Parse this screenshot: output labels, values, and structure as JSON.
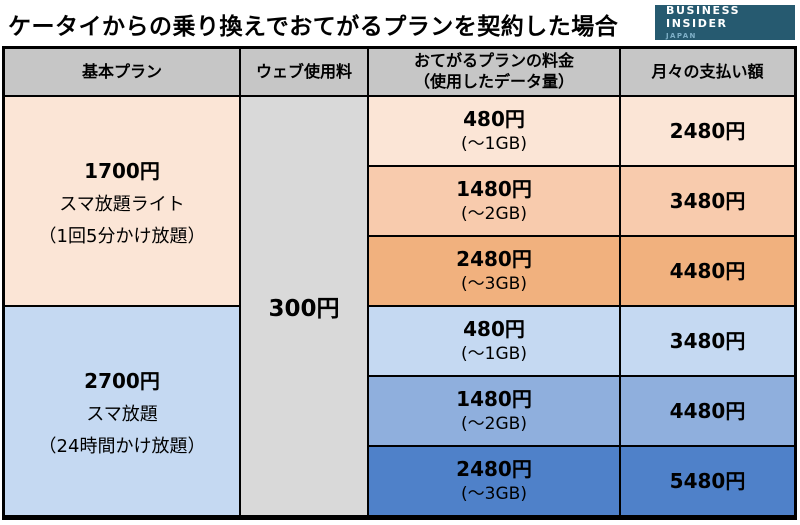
{
  "title": "ケータイからの乗り換えでおてがるプランを契約した場合",
  "logo": {
    "brand": "BUSINESS INSIDER",
    "region": "JAPAN"
  },
  "chart_data": {
    "type": "table",
    "title": "ケータイからの乗り換えでおてがるプランを契約した場合",
    "headers": {
      "base_plan": "基本プラン",
      "web_fee": "ウェブ使用料",
      "plan_fee_line1": "おてがるプランの料金",
      "plan_fee_line2": "（使用したデータ量）",
      "monthly_total": "月々の支払い額"
    },
    "web_fee_value": "300円",
    "plans": [
      {
        "base_price": "1700円",
        "plan_name": "スマ放題ライト",
        "plan_note": "（1回5分かけ放題）",
        "rows": [
          {
            "fee": "480円",
            "data_amount": "(～1GB)",
            "monthly_total": "2480円"
          },
          {
            "fee": "1480円",
            "data_amount": "(～2GB)",
            "monthly_total": "3480円"
          },
          {
            "fee": "2480円",
            "data_amount": "(～3GB)",
            "monthly_total": "4480円"
          }
        ]
      },
      {
        "base_price": "2700円",
        "plan_name": "スマ放題",
        "plan_note": "（24時間かけ放題）",
        "rows": [
          {
            "fee": "480円",
            "data_amount": "(～1GB)",
            "monthly_total": "3480円"
          },
          {
            "fee": "1480円",
            "data_amount": "(～2GB)",
            "monthly_total": "4480円"
          },
          {
            "fee": "2480円",
            "data_amount": "(～3GB)",
            "monthly_total": "5480円"
          }
        ]
      }
    ]
  },
  "colors": {
    "header_gray": "#c6c6c6",
    "web_fee_gray": "#d9d9d9",
    "orange_light": "#fbe5d6",
    "orange_mid": "#f8cbad",
    "orange_dark": "#f1b17e",
    "blue_light": "#c5d9f2",
    "blue_mid": "#8fafdd",
    "blue_dark": "#4f81c9",
    "logo_background": "#265a70",
    "logo_japan_text": "#7fb0c8",
    "border_black": "#000000"
  }
}
